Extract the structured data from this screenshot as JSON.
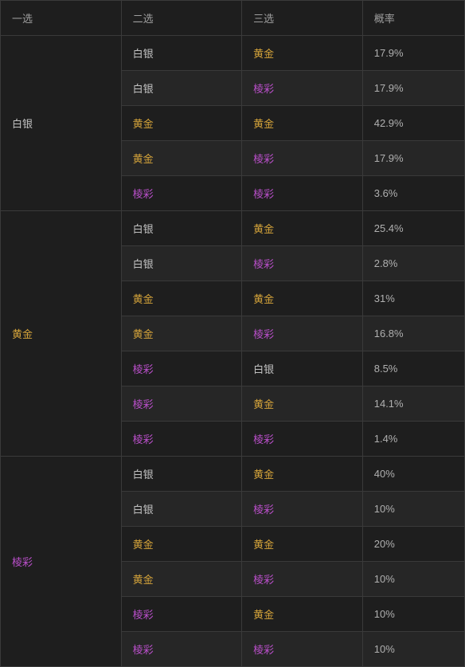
{
  "colors": {
    "silver": "#c0c0c0",
    "gold": "#d4a33a",
    "prism": "#b94fc9",
    "header_text": "#9e9e9e",
    "body_text": "#b0b0b0",
    "bg_row": "#1e1e1e",
    "bg_row_alt": "#262626",
    "border": "#3a3a3a",
    "page_bg": "#1a1a1a"
  },
  "tiers": {
    "silver": "白银",
    "gold": "黄金",
    "prism": "棱彩"
  },
  "table": {
    "type": "table",
    "columns": [
      {
        "key": "pick1",
        "label": "一选"
      },
      {
        "key": "pick2",
        "label": "二选"
      },
      {
        "key": "pick3",
        "label": "三选"
      },
      {
        "key": "rate",
        "label": "概率"
      }
    ],
    "groups": [
      {
        "pick1": {
          "tier": "silver",
          "label": "白银"
        },
        "rows": [
          {
            "pick2": {
              "tier": "silver",
              "label": "白银"
            },
            "pick3": {
              "tier": "gold",
              "label": "黄金"
            },
            "rate": "17.9%"
          },
          {
            "pick2": {
              "tier": "silver",
              "label": "白银"
            },
            "pick3": {
              "tier": "prism",
              "label": "棱彩"
            },
            "rate": "17.9%"
          },
          {
            "pick2": {
              "tier": "gold",
              "label": "黄金"
            },
            "pick3": {
              "tier": "gold",
              "label": "黄金"
            },
            "rate": "42.9%"
          },
          {
            "pick2": {
              "tier": "gold",
              "label": "黄金"
            },
            "pick3": {
              "tier": "prism",
              "label": "棱彩"
            },
            "rate": "17.9%"
          },
          {
            "pick2": {
              "tier": "prism",
              "label": "棱彩"
            },
            "pick3": {
              "tier": "prism",
              "label": "棱彩"
            },
            "rate": "3.6%"
          }
        ]
      },
      {
        "pick1": {
          "tier": "gold",
          "label": "黄金"
        },
        "rows": [
          {
            "pick2": {
              "tier": "silver",
              "label": "白银"
            },
            "pick3": {
              "tier": "gold",
              "label": "黄金"
            },
            "rate": "25.4%"
          },
          {
            "pick2": {
              "tier": "silver",
              "label": "白银"
            },
            "pick3": {
              "tier": "prism",
              "label": "棱彩"
            },
            "rate": "2.8%"
          },
          {
            "pick2": {
              "tier": "gold",
              "label": "黄金"
            },
            "pick3": {
              "tier": "gold",
              "label": "黄金"
            },
            "rate": "31%"
          },
          {
            "pick2": {
              "tier": "gold",
              "label": "黄金"
            },
            "pick3": {
              "tier": "prism",
              "label": "棱彩"
            },
            "rate": "16.8%"
          },
          {
            "pick2": {
              "tier": "prism",
              "label": "棱彩"
            },
            "pick3": {
              "tier": "silver",
              "label": "白银"
            },
            "rate": "8.5%"
          },
          {
            "pick2": {
              "tier": "prism",
              "label": "棱彩"
            },
            "pick3": {
              "tier": "gold",
              "label": "黄金"
            },
            "rate": "14.1%"
          },
          {
            "pick2": {
              "tier": "prism",
              "label": "棱彩"
            },
            "pick3": {
              "tier": "prism",
              "label": "棱彩"
            },
            "rate": "1.4%"
          }
        ]
      },
      {
        "pick1": {
          "tier": "prism",
          "label": "棱彩"
        },
        "rows": [
          {
            "pick2": {
              "tier": "silver",
              "label": "白银"
            },
            "pick3": {
              "tier": "gold",
              "label": "黄金"
            },
            "rate": "40%"
          },
          {
            "pick2": {
              "tier": "silver",
              "label": "白银"
            },
            "pick3": {
              "tier": "prism",
              "label": "棱彩"
            },
            "rate": "10%"
          },
          {
            "pick2": {
              "tier": "gold",
              "label": "黄金"
            },
            "pick3": {
              "tier": "gold",
              "label": "黄金"
            },
            "rate": "20%"
          },
          {
            "pick2": {
              "tier": "gold",
              "label": "黄金"
            },
            "pick3": {
              "tier": "prism",
              "label": "棱彩"
            },
            "rate": "10%"
          },
          {
            "pick2": {
              "tier": "prism",
              "label": "棱彩"
            },
            "pick3": {
              "tier": "gold",
              "label": "黄金"
            },
            "rate": "10%"
          },
          {
            "pick2": {
              "tier": "prism",
              "label": "棱彩"
            },
            "pick3": {
              "tier": "prism",
              "label": "棱彩"
            },
            "rate": "10%"
          }
        ]
      }
    ]
  }
}
